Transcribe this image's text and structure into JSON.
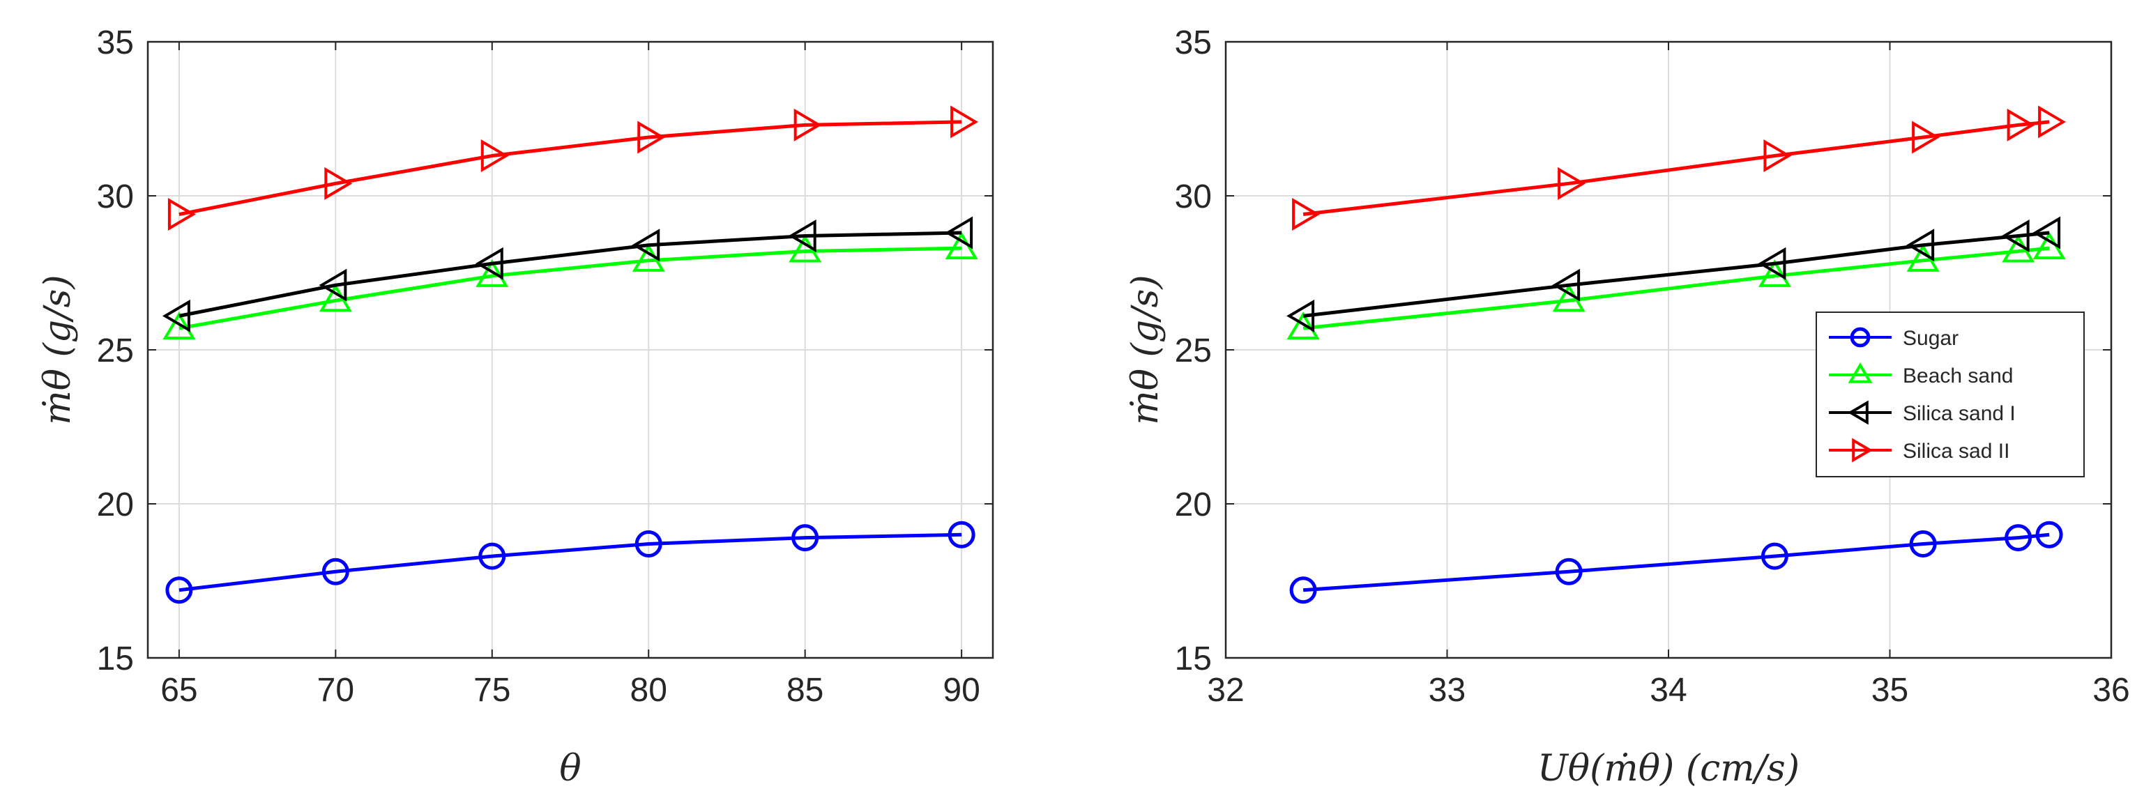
{
  "chart_data": [
    {
      "type": "line",
      "title": "",
      "xlabel": "θ",
      "ylabel": "ṁθ (g/s)",
      "xlim": [
        64,
        91
      ],
      "ylim": [
        15,
        35
      ],
      "xticks": [
        65,
        70,
        75,
        80,
        85,
        90
      ],
      "yticks": [
        15,
        20,
        25,
        30,
        35
      ],
      "grid": true,
      "series": [
        {
          "name": "Sugar",
          "color": "#0000ff",
          "marker": "circle",
          "x": [
            65,
            70,
            75,
            80,
            85,
            90
          ],
          "y": [
            17.2,
            17.8,
            18.3,
            18.7,
            18.9,
            19.0
          ]
        },
        {
          "name": "Beach sand",
          "color": "#00ff00",
          "marker": "triangle-up",
          "x": [
            65,
            70,
            75,
            80,
            85,
            90
          ],
          "y": [
            25.7,
            26.6,
            27.4,
            27.9,
            28.2,
            28.3
          ]
        },
        {
          "name": "Silica sand I",
          "color": "#000000",
          "marker": "triangle-left",
          "x": [
            65,
            70,
            75,
            80,
            85,
            90
          ],
          "y": [
            26.1,
            27.1,
            27.8,
            28.4,
            28.7,
            28.8
          ]
        },
        {
          "name": "Silica sad II",
          "color": "#ff0000",
          "marker": "triangle-right",
          "x": [
            65,
            70,
            75,
            80,
            85,
            90
          ],
          "y": [
            29.4,
            30.4,
            31.3,
            31.9,
            32.3,
            32.4
          ]
        }
      ]
    },
    {
      "type": "line",
      "title": "",
      "xlabel": "Uθ(ṁθ) (cm/s)",
      "ylabel": "ṁθ (g/s)",
      "xlim": [
        32,
        36
      ],
      "ylim": [
        15,
        35
      ],
      "xticks": [
        32,
        33,
        34,
        35,
        36
      ],
      "yticks": [
        15,
        20,
        25,
        30,
        35
      ],
      "grid": true,
      "legend": "right",
      "series": [
        {
          "name": "Sugar",
          "color": "#0000ff",
          "marker": "circle",
          "x": [
            32.35,
            33.55,
            34.48,
            35.15,
            35.58,
            35.72
          ],
          "y": [
            17.2,
            17.8,
            18.3,
            18.7,
            18.9,
            19.0
          ]
        },
        {
          "name": "Beach sand",
          "color": "#00ff00",
          "marker": "triangle-up",
          "x": [
            32.35,
            33.55,
            34.48,
            35.15,
            35.58,
            35.72
          ],
          "y": [
            25.7,
            26.6,
            27.4,
            27.9,
            28.2,
            28.3
          ]
        },
        {
          "name": "Silica sand I",
          "color": "#000000",
          "marker": "triangle-left",
          "x": [
            32.35,
            33.55,
            34.48,
            35.15,
            35.58,
            35.72
          ],
          "y": [
            26.1,
            27.1,
            27.8,
            28.4,
            28.7,
            28.8
          ]
        },
        {
          "name": "Silica sad II",
          "color": "#ff0000",
          "marker": "triangle-right",
          "x": [
            32.35,
            33.55,
            34.48,
            35.15,
            35.58,
            35.72
          ],
          "y": [
            29.4,
            30.4,
            31.3,
            31.9,
            32.3,
            32.4
          ]
        }
      ]
    }
  ]
}
